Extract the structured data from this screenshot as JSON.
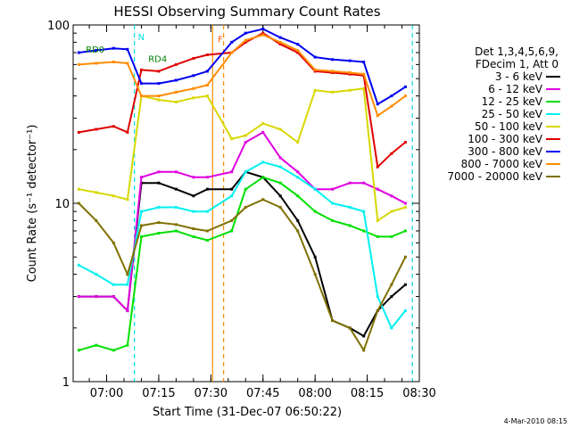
{
  "chart_data": {
    "type": "line",
    "title": "HESSI Observing Summary Count Rates",
    "xlabel": "Start Time (31-Dec-07 06:50:22)",
    "ylabel": "Count Rate (s⁻¹ detector⁻¹)",
    "yscale": "log",
    "ylim": [
      1,
      100
    ],
    "xlim": [
      "06:50:22",
      "08:30"
    ],
    "x_ticks": [
      "07:00",
      "07:15",
      "07:30",
      "07:45",
      "08:00",
      "08:15",
      "08:30"
    ],
    "y_ticks": [
      "1",
      "10",
      "100"
    ],
    "legend_position": "right",
    "legend_header": [
      "Det 1,3,4,5,6,9,",
      "FDecim 1, Att 0"
    ],
    "footer_date": "4-Mar-2010 08:15",
    "annotations": [
      {
        "label": "RD0",
        "x": "06:54:00",
        "y": 70,
        "color": "#008000"
      },
      {
        "label": "RD4",
        "x": "07:12:00",
        "y": 62,
        "color": "#008000"
      },
      {
        "label": "N",
        "x": "07:09:00",
        "y": 82,
        "color": "#00e0e0"
      },
      {
        "label": "F",
        "x": "07:32:00",
        "y": 80,
        "color": "#ff6000"
      }
    ],
    "vertical_markers": [
      {
        "x": "07:08:00",
        "color": "#00e0e0",
        "style": "dashed"
      },
      {
        "x": "07:30:30",
        "color": "#ff8c00",
        "style": "solid"
      },
      {
        "x": "07:33:40",
        "color": "#ff8c00",
        "style": "dashed"
      },
      {
        "x": "08:28:00",
        "color": "#00e0e0",
        "style": "dashed"
      }
    ],
    "x": [
      "06:52",
      "06:57",
      "07:02",
      "07:06",
      "07:10",
      "07:15",
      "07:20",
      "07:25",
      "07:29",
      "07:36",
      "07:40",
      "07:45",
      "07:50",
      "07:55",
      "08:00",
      "08:05",
      "08:10",
      "08:14",
      "08:18",
      "08:22",
      "08:26"
    ],
    "series": [
      {
        "name": "3 - 6 keV",
        "color": "#000000",
        "values": [
          3,
          3,
          3,
          2.5,
          13,
          13,
          12,
          11,
          12,
          12,
          15,
          14,
          11,
          8,
          5,
          2.2,
          2,
          1.8,
          2.5,
          3,
          3.5
        ]
      },
      {
        "name": "6 - 12 keV",
        "color": "#e000e0",
        "values": [
          3,
          3,
          3,
          2.5,
          14,
          15,
          15,
          14,
          14,
          15,
          22,
          25,
          18,
          15,
          12,
          12,
          13,
          13,
          12,
          11,
          10
        ]
      },
      {
        "name": "12 - 25 keV",
        "color": "#00e000",
        "values": [
          1.5,
          1.6,
          1.5,
          1.6,
          6.5,
          6.8,
          7,
          6.5,
          6.2,
          7,
          12,
          14,
          13,
          11,
          9,
          8,
          7.5,
          7,
          6.5,
          6.5,
          7
        ]
      },
      {
        "name": "25 - 50 keV",
        "color": "#00f0f0",
        "values": [
          4.5,
          4,
          3.5,
          3.5,
          9,
          9.5,
          9.5,
          9,
          9,
          11,
          15,
          17,
          16,
          14,
          12,
          10,
          9.5,
          9,
          3,
          2,
          2.5
        ]
      },
      {
        "name": "50 - 100 keV",
        "color": "#d8d800",
        "values": [
          12,
          11.5,
          11,
          10.5,
          40,
          38,
          37,
          39,
          40,
          23,
          24,
          28,
          26,
          22,
          43,
          42,
          43,
          44,
          8,
          9,
          9.5
        ]
      },
      {
        "name": "100 - 300 keV",
        "color": "#e00000",
        "values": [
          25,
          26,
          27,
          25,
          56,
          55,
          60,
          65,
          68,
          70,
          80,
          90,
          78,
          70,
          55,
          54,
          53,
          52,
          16,
          19,
          22
        ]
      },
      {
        "name": "300 - 800 keV",
        "color": "#0000f0",
        "values": [
          70,
          72,
          74,
          73,
          47,
          47,
          49,
          52,
          55,
          80,
          90,
          95,
          85,
          78,
          66,
          64,
          63,
          62,
          36,
          40,
          45
        ]
      },
      {
        "name": "800 - 7000 keV",
        "color": "#ff8c00",
        "values": [
          60,
          61,
          62,
          61,
          40,
          40,
          42,
          44,
          46,
          70,
          82,
          88,
          80,
          72,
          56,
          55,
          54,
          53,
          31,
          35,
          40
        ]
      },
      {
        "name": "7000 - 20000 keV",
        "color": "#807000",
        "values": [
          10,
          8,
          6,
          4,
          7.5,
          7.8,
          7.6,
          7.2,
          7,
          8,
          9.5,
          10.5,
          9.5,
          7,
          4,
          2.2,
          2,
          1.5,
          2.5,
          3.5,
          5
        ]
      }
    ]
  }
}
